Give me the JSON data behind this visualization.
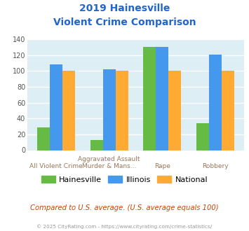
{
  "title_line1": "2019 Hainesville",
  "title_line2": "Violent Crime Comparison",
  "cat_labels_top": [
    "",
    "Aggravated Assault",
    "",
    ""
  ],
  "cat_labels_bot": [
    "All Violent Crime",
    "Murder & Mans...",
    "Rape",
    "Robbery"
  ],
  "series": {
    "Hainesville": [
      29,
      13,
      130,
      34
    ],
    "Illinois": [
      108,
      102,
      130,
      121
    ],
    "National": [
      100,
      100,
      100,
      100
    ]
  },
  "colors": {
    "Hainesville": "#66bb44",
    "Illinois": "#4499ee",
    "National": "#ffaa33"
  },
  "ylim": [
    0,
    140
  ],
  "yticks": [
    0,
    20,
    40,
    60,
    80,
    100,
    120,
    140
  ],
  "title_color": "#2266cc",
  "plot_bg": "#ddeef5",
  "footer_text": "Compared to U.S. average. (U.S. average equals 100)",
  "copyright_text": "© 2025 CityRating.com - https://www.cityrating.com/crime-statistics/",
  "footer_color": "#cc4400",
  "copyright_color": "#999999"
}
